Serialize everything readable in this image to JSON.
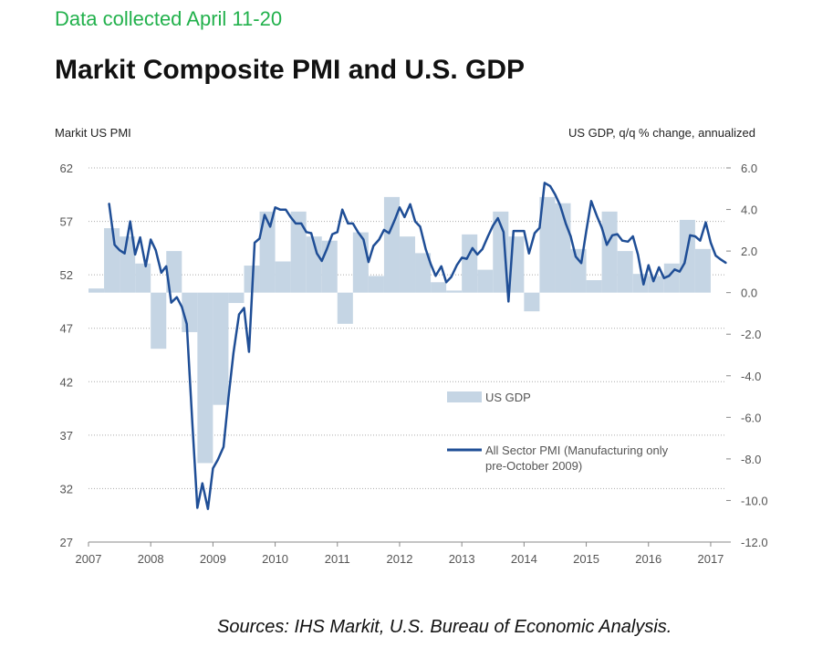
{
  "header": {
    "note": "Data collected April 11-20",
    "title": "Markit Composite PMI and U.S. GDP"
  },
  "footer": {
    "sources": "Sources:  IHS Markit, U.S. Bureau of Economic Analysis."
  },
  "colors": {
    "note": "#22b14c",
    "gdp_bar": "#c5d5e4",
    "pmi_line": "#1f4e96",
    "grid": "#aaaaaa"
  },
  "chart_data": {
    "type": "bar+line",
    "left_axis_title": "Markit US  PMI",
    "right_axis_title": "US GDP, q/q % change, annualized",
    "left_ticks": [
      "62",
      "57",
      "52",
      "47",
      "42",
      "37",
      "32",
      "27"
    ],
    "right_ticks": [
      "6.0",
      "4.0",
      "2.0",
      "0.0",
      "-2.0",
      "-4.0",
      "-6.0",
      "-8.0",
      "-10.0",
      "-12.0"
    ],
    "x_ticks": [
      "2007",
      "2008",
      "2009",
      "2010",
      "2011",
      "2012",
      "2013",
      "2014",
      "2015",
      "2016",
      "2017"
    ],
    "left_range": [
      27,
      62
    ],
    "right_range": [
      -12,
      6
    ],
    "x_range": [
      2007.0,
      2017.25
    ],
    "grid": "horizontal dotted",
    "legend_position": "lower-right",
    "series": [
      {
        "name": "US GDP",
        "kind": "bar",
        "axis": "right",
        "x": [
          2007.0,
          2007.25,
          2007.5,
          2007.75,
          2008.0,
          2008.25,
          2008.5,
          2008.75,
          2009.0,
          2009.25,
          2009.5,
          2009.75,
          2010.0,
          2010.25,
          2010.5,
          2010.75,
          2011.0,
          2011.25,
          2011.5,
          2011.75,
          2012.0,
          2012.25,
          2012.5,
          2012.75,
          2013.0,
          2013.25,
          2013.5,
          2013.75,
          2014.0,
          2014.25,
          2014.5,
          2014.75,
          2015.0,
          2015.25,
          2015.5,
          2015.75,
          2016.0,
          2016.25,
          2016.5,
          2016.75
        ],
        "values": [
          0.2,
          3.1,
          2.7,
          1.4,
          -2.7,
          2.0,
          -1.9,
          -8.2,
          -5.4,
          -0.5,
          1.3,
          3.9,
          1.5,
          3.9,
          2.7,
          2.5,
          -1.5,
          2.9,
          0.8,
          4.6,
          2.7,
          1.9,
          0.5,
          0.1,
          2.8,
          1.1,
          3.9,
          2.7,
          -0.9,
          4.6,
          4.3,
          2.1,
          0.6,
          3.9,
          2.0,
          0.9,
          0.8,
          1.4,
          3.5,
          2.1
        ]
      },
      {
        "name": "All Sector PMI (Manufacturing only pre-October 2009)",
        "kind": "line",
        "axis": "left",
        "x": [
          2007.33,
          2007.42,
          2007.5,
          2007.58,
          2007.67,
          2007.75,
          2007.83,
          2007.92,
          2008.0,
          2008.08,
          2008.17,
          2008.25,
          2008.33,
          2008.42,
          2008.5,
          2008.58,
          2008.67,
          2008.75,
          2008.83,
          2008.92,
          2009.0,
          2009.08,
          2009.17,
          2009.25,
          2009.33,
          2009.42,
          2009.5,
          2009.58,
          2009.67,
          2009.75,
          2009.83,
          2009.92,
          2010.0,
          2010.08,
          2010.17,
          2010.25,
          2010.33,
          2010.42,
          2010.5,
          2010.58,
          2010.67,
          2010.75,
          2010.83,
          2010.92,
          2011.0,
          2011.08,
          2011.17,
          2011.25,
          2011.33,
          2011.42,
          2011.5,
          2011.58,
          2011.67,
          2011.75,
          2011.83,
          2011.92,
          2012.0,
          2012.08,
          2012.17,
          2012.25,
          2012.33,
          2012.42,
          2012.5,
          2012.58,
          2012.67,
          2012.75,
          2012.83,
          2012.92,
          2013.0,
          2013.08,
          2013.17,
          2013.25,
          2013.33,
          2013.42,
          2013.5,
          2013.58,
          2013.67,
          2013.75,
          2013.83,
          2013.92,
          2014.0,
          2014.08,
          2014.17,
          2014.25,
          2014.33,
          2014.42,
          2014.5,
          2014.58,
          2014.67,
          2014.75,
          2014.83,
          2014.92,
          2015.0,
          2015.08,
          2015.17,
          2015.25,
          2015.33,
          2015.42,
          2015.5,
          2015.58,
          2015.67,
          2015.75,
          2015.83,
          2015.92,
          2016.0,
          2016.08,
          2016.17,
          2016.25,
          2016.33,
          2016.42,
          2016.5,
          2016.58,
          2016.67,
          2016.75,
          2016.83,
          2016.92,
          2017.0,
          2017.08,
          2017.17,
          2017.25
        ],
        "values": [
          58.7,
          54.8,
          54.3,
          54.0,
          57.0,
          53.9,
          55.5,
          52.8,
          55.3,
          54.3,
          52.2,
          52.8,
          49.4,
          49.9,
          49.0,
          47.4,
          38.0,
          30.2,
          32.5,
          30.1,
          33.9,
          34.7,
          35.9,
          40.5,
          44.7,
          48.3,
          48.9,
          44.8,
          55.0,
          55.4,
          57.6,
          56.5,
          58.3,
          58.1,
          58.1,
          57.4,
          56.8,
          56.8,
          56.0,
          55.9,
          54.0,
          53.3,
          54.4,
          55.8,
          56.0,
          58.1,
          56.8,
          56.8,
          56.0,
          55.3,
          53.2,
          54.7,
          55.3,
          56.2,
          55.9,
          57.1,
          58.3,
          57.4,
          58.6,
          57.0,
          56.5,
          54.4,
          53.0,
          51.9,
          52.8,
          51.3,
          51.8,
          52.9,
          53.6,
          53.5,
          54.5,
          53.9,
          54.4,
          55.6,
          56.6,
          57.3,
          56.0,
          49.5,
          56.1,
          56.1,
          56.1,
          54.0,
          55.9,
          56.4,
          60.6,
          60.3,
          59.5,
          58.5,
          56.8,
          55.6,
          53.7,
          53.1,
          56.1,
          58.9,
          57.5,
          56.4,
          54.8,
          55.7,
          55.8,
          55.2,
          55.1,
          55.6,
          53.9,
          51.1,
          52.9,
          51.4,
          52.7,
          51.7,
          51.9,
          52.5,
          52.3,
          53.1,
          55.7,
          55.6,
          55.2,
          56.9,
          55.0,
          53.8,
          53.4,
          53.1
        ]
      }
    ],
    "legend": [
      "US GDP",
      "All Sector PMI (Manufacturing only",
      "pre-October 2009)"
    ]
  }
}
